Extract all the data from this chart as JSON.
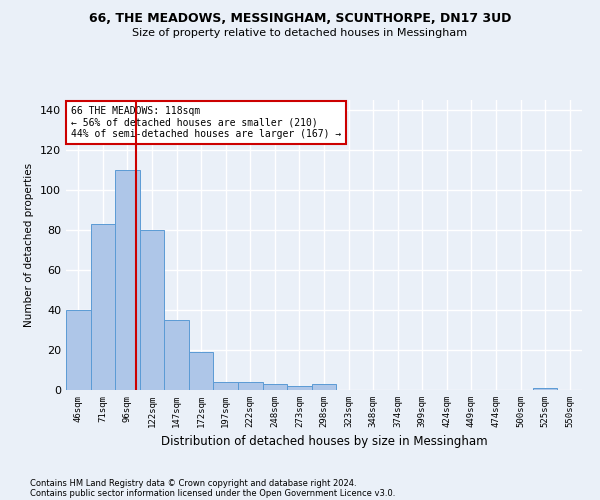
{
  "title1": "66, THE MEADOWS, MESSINGHAM, SCUNTHORPE, DN17 3UD",
  "title2": "Size of property relative to detached houses in Messingham",
  "xlabel": "Distribution of detached houses by size in Messingham",
  "ylabel": "Number of detached properties",
  "bin_labels": [
    "46sqm",
    "71sqm",
    "96sqm",
    "122sqm",
    "147sqm",
    "172sqm",
    "197sqm",
    "222sqm",
    "248sqm",
    "273sqm",
    "298sqm",
    "323sqm",
    "348sqm",
    "374sqm",
    "399sqm",
    "424sqm",
    "449sqm",
    "474sqm",
    "500sqm",
    "525sqm",
    "550sqm"
  ],
  "bar_values": [
    40,
    83,
    110,
    80,
    35,
    19,
    4,
    4,
    3,
    2,
    3,
    0,
    0,
    0,
    0,
    0,
    0,
    0,
    0,
    1,
    0
  ],
  "bar_color": "#aec6e8",
  "bar_edge_color": "#5b9bd5",
  "vline_color": "#cc0000",
  "annotation_text": "66 THE MEADOWS: 118sqm\n← 56% of detached houses are smaller (210)\n44% of semi-detached houses are larger (167) →",
  "annotation_box_color": "#ffffff",
  "annotation_box_edge": "#cc0000",
  "ylim": [
    0,
    145
  ],
  "yticks": [
    0,
    20,
    40,
    60,
    80,
    100,
    120,
    140
  ],
  "footnote1": "Contains HM Land Registry data © Crown copyright and database right 2024.",
  "footnote2": "Contains public sector information licensed under the Open Government Licence v3.0.",
  "bg_color": "#eaf0f8",
  "grid_color": "#ffffff"
}
